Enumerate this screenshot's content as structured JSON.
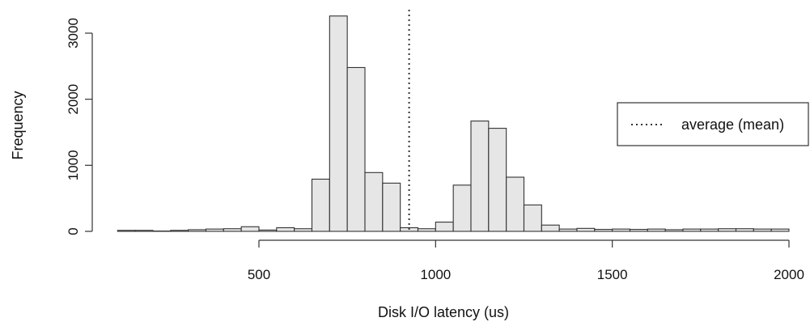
{
  "chart_data": {
    "type": "bar",
    "subtype": "histogram",
    "xlabel": "Disk I/O latency (us)",
    "ylabel": "Frequency",
    "xlim": [
      100,
      2000
    ],
    "ylim": [
      0,
      3300
    ],
    "x_ticks": [
      500,
      1000,
      1500,
      2000
    ],
    "y_ticks": [
      0,
      1000,
      2000,
      3000
    ],
    "bin_width": 50,
    "bin_starts": [
      100,
      150,
      200,
      250,
      300,
      350,
      400,
      450,
      500,
      550,
      600,
      650,
      700,
      750,
      800,
      850,
      900,
      950,
      1000,
      1050,
      1100,
      1150,
      1200,
      1250,
      1300,
      1350,
      1400,
      1450,
      1500,
      1550,
      1600,
      1650,
      1700,
      1750,
      1800,
      1850,
      1900,
      1950
    ],
    "values": [
      15,
      15,
      5,
      15,
      25,
      35,
      40,
      70,
      20,
      55,
      40,
      790,
      3260,
      2480,
      890,
      730,
      55,
      40,
      140,
      700,
      1670,
      1560,
      820,
      400,
      95,
      35,
      45,
      30,
      35,
      30,
      35,
      25,
      35,
      35,
      40,
      40,
      35,
      35
    ],
    "mean_line": {
      "x": 925,
      "style": "dotted"
    },
    "legend": {
      "label": "average (mean)",
      "placement": "right"
    },
    "bar_fill": "#e6e6e6",
    "bar_stroke": "#333333",
    "grid": false
  }
}
